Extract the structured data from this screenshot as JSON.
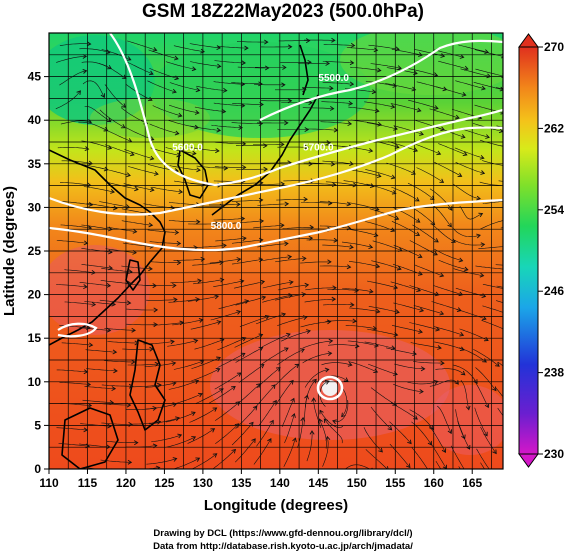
{
  "title": "GSM 18Z22May2023 (500.0hPa)",
  "x_axis": {
    "label": "Longitude (degrees)",
    "ticks": [
      "110",
      "115",
      "120",
      "125",
      "130",
      "135",
      "140",
      "145",
      "150",
      "155",
      "160",
      "165"
    ]
  },
  "y_axis": {
    "label": "Latitude (degrees)",
    "ticks": [
      "0",
      "5",
      "10",
      "15",
      "20",
      "25",
      "30",
      "35",
      "40",
      "45"
    ]
  },
  "colorbar": {
    "ticks": [
      "230",
      "238",
      "246",
      "254",
      "262",
      "270"
    ],
    "min": 230,
    "max": 270,
    "colors": [
      "#d417c8",
      "#6a1fd0",
      "#2233d8",
      "#1ba6e8",
      "#18d6b8",
      "#22d65a",
      "#7fe02a",
      "#d8ea1a",
      "#f4c21a",
      "#f2861a",
      "#ee5a1c",
      "#e0301e"
    ]
  },
  "contours": [
    {
      "label": "5500.0",
      "lat": 44.5,
      "lon": 147
    },
    {
      "label": "5600.0",
      "lat": 36.5,
      "lon": 128
    },
    {
      "label": "5700.0",
      "lat": 36.5,
      "lon": 145
    },
    {
      "label": "5800.0",
      "lat": 27.5,
      "lon": 133
    }
  ],
  "footer": {
    "line1": "Drawing by DCL (https://www.gfd-dennou.org/library/dcl/)",
    "line2": "Data from http://database.rish.kyoto-u.ac.jp/arch/jmadata/"
  },
  "colors": {
    "frame": "#000000",
    "contour": "#ffffff",
    "streamline": "#111111"
  }
}
